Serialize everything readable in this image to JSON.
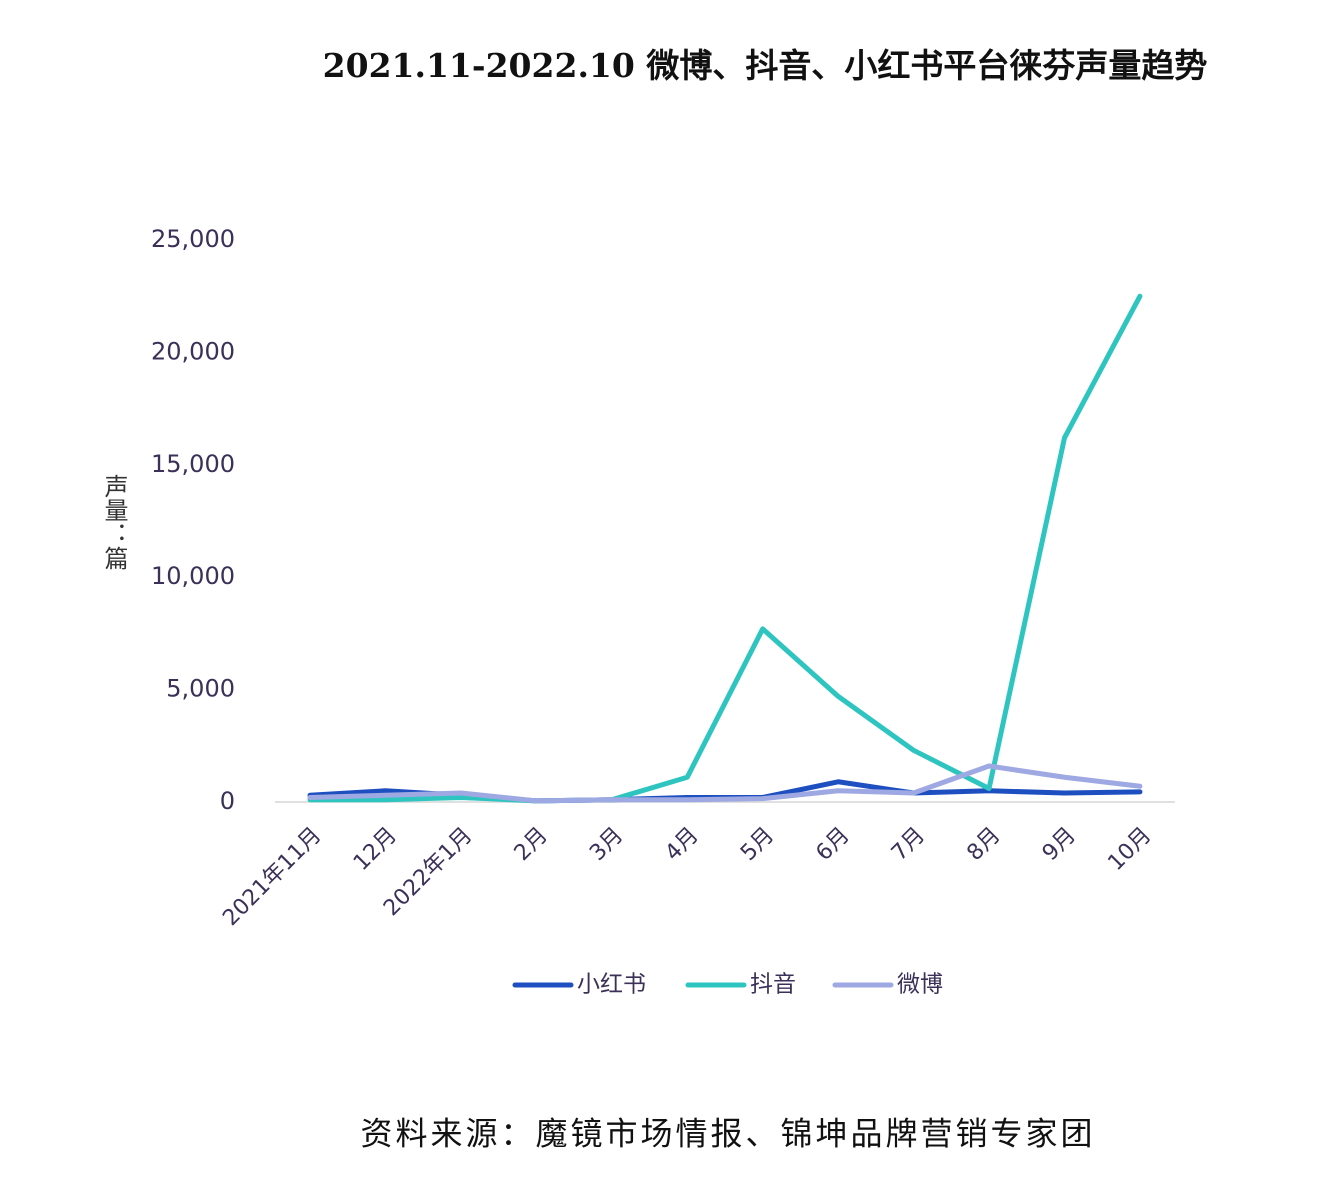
{
  "chart_data": {
    "type": "line",
    "title": "2021.11-2022.10 微博、抖音、小红书平台徕芬声量趋势",
    "y_label": "声量：篇",
    "source": "资料来源：魔镜市场情报、锦坤品牌营销专家团",
    "categories": [
      "2021年11月",
      "12月",
      "2022年1月",
      "2月",
      "3月",
      "4月",
      "5月",
      "6月",
      "7月",
      "8月",
      "9月",
      "10月"
    ],
    "series": [
      {
        "name": "小红书",
        "color": "#1e4fc0",
        "values": [
          300,
          500,
          300,
          50,
          100,
          200,
          200,
          900,
          400,
          500,
          400,
          450
        ]
      },
      {
        "name": "抖音",
        "color": "#2ec5c0",
        "values": [
          100,
          100,
          200,
          50,
          100,
          1100,
          7700,
          4700,
          2300,
          600,
          16200,
          22500
        ]
      },
      {
        "name": "微博",
        "color": "#9ea8e2",
        "values": [
          200,
          300,
          400,
          50,
          100,
          100,
          150,
          500,
          400,
          1600,
          1100,
          700
        ]
      }
    ],
    "ylim": [
      0,
      25000
    ],
    "yticks": [
      0,
      {
        "value": 5000,
        "label": "5,000"
      },
      {
        "value": 10000,
        "label": "10,000"
      },
      {
        "value": 15000,
        "label": "15,000"
      },
      {
        "value": 20000,
        "label": "20,000"
      },
      {
        "value": 25000,
        "label": "25,000"
      }
    ],
    "grid": false,
    "legend": "bottom"
  }
}
